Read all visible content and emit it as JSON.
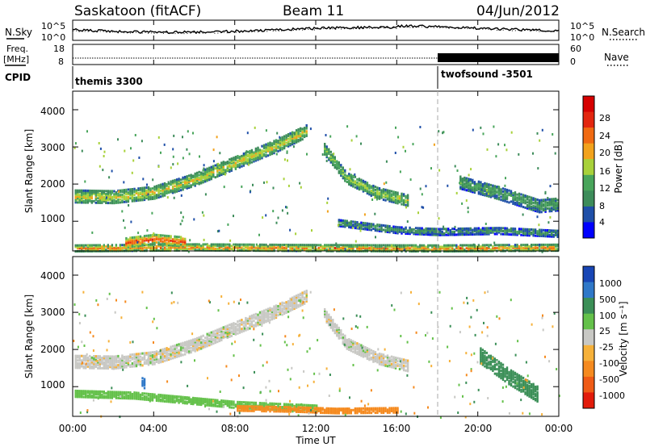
{
  "header": {
    "station": "Saskatoon (fitACF)",
    "beam": "Beam 11",
    "date": "04/Jun/2012"
  },
  "noise_panel": {
    "left_label": "N.Sky",
    "right_label": "N.Search",
    "y_ticks": [
      "10^5",
      "10^0"
    ],
    "right_ticks": [
      "10^5",
      "10^0"
    ]
  },
  "freq_panel": {
    "left_label_1": "Freq.",
    "left_label_2": "[MHz]",
    "right_label": "Nave",
    "y_ticks": [
      "18",
      "8"
    ],
    "right_ticks": [
      "60",
      "0"
    ]
  },
  "cpid": {
    "label": "CPID",
    "segments": [
      {
        "name": "themis 3300",
        "start_hour": 0
      },
      {
        "name": "twofsound -3501",
        "start_hour": 18
      }
    ]
  },
  "x_axis": {
    "label": "Time UT",
    "ticks": [
      "00:00",
      "04:00",
      "08:00",
      "12:00",
      "16:00",
      "20:00",
      "00:00"
    ],
    "range_hours": [
      0,
      24
    ]
  },
  "power_panel": {
    "ylabel": "Slant Range [km]",
    "y_ticks": [
      "1000",
      "2000",
      "3000",
      "4000"
    ],
    "colorbar_label": "Power [dB]",
    "colorbar_ticks": [
      "4",
      "8",
      "12",
      "16",
      "20",
      "24",
      "28"
    ],
    "colors": [
      "#0000ff",
      "#1f4fa8",
      "#3d8c5a",
      "#49a55b",
      "#a8d13a",
      "#f2a21c",
      "#f06a12",
      "#e3260f",
      "#d60000"
    ]
  },
  "velocity_panel": {
    "ylabel": "Slant Range [km]",
    "y_ticks": [
      "1000",
      "2000",
      "3000",
      "4000"
    ],
    "colorbar_label": "Velocity [m s⁻¹]",
    "colorbar_ticks": [
      "1000",
      "500",
      "100",
      "25",
      "-25",
      "-100",
      "-500",
      "-1000"
    ],
    "colors": [
      "#1846b5",
      "#2f78c8",
      "#3b8f57",
      "#64c14a",
      "#c8c8c4",
      "#f6b13a",
      "#f58a1f",
      "#ef5b16",
      "#e21b0b"
    ]
  },
  "chart_data": [
    {
      "type": "heatmap",
      "title": "",
      "xlabel": "",
      "ylabel": "Slant Range [km]",
      "xlim": [
        0,
        24
      ],
      "ylim": [
        200,
        4500
      ],
      "z_label": "Power [dB]",
      "z_range": [
        0,
        32
      ],
      "bands": [
        {
          "x": [
            0,
            2,
            4,
            6,
            8,
            10,
            11.5
          ],
          "y": [
            1700,
            1680,
            1800,
            2150,
            2600,
            3050,
            3450
          ],
          "width_km": 320,
          "level_db": 18
        },
        {
          "x": [
            12.3,
            13.5,
            15,
            16.5
          ],
          "y": [
            3050,
            2200,
            1800,
            1600
          ],
          "width_km": 300,
          "level_db": 16
        },
        {
          "x": [
            13,
            16,
            18,
            21,
            24
          ],
          "y": [
            1000,
            800,
            750,
            780,
            700
          ],
          "width_km": 180,
          "level_db": 10
        },
        {
          "x": [
            0,
            6,
            12,
            18,
            24
          ],
          "y": [
            300,
            330,
            310,
            300,
            320
          ],
          "width_km": 160,
          "level_db": 22
        },
        {
          "x": [
            2.5,
            4,
            5.5
          ],
          "y": [
            450,
            550,
            480
          ],
          "width_km": 250,
          "level_db": 26
        },
        {
          "x": [
            19,
            21,
            23,
            24
          ],
          "y": [
            2100,
            1800,
            1450,
            1500
          ],
          "width_km": 350,
          "level_db": 12
        }
      ]
    },
    {
      "type": "heatmap",
      "title": "",
      "xlabel": "Time UT",
      "ylabel": "Slant Range [km]",
      "xlim": [
        0,
        24
      ],
      "ylim": [
        200,
        4500
      ],
      "z_label": "Velocity [m s⁻¹]",
      "z_range": [
        -1000,
        1000
      ],
      "bands": [
        {
          "x": [
            0,
            2,
            4,
            6,
            8,
            10,
            11.5
          ],
          "y": [
            1700,
            1680,
            1800,
            2150,
            2600,
            3050,
            3450
          ],
          "width_km": 320,
          "velocity": 0
        },
        {
          "x": [
            12.3,
            13.5,
            15,
            16.5
          ],
          "y": [
            3050,
            2200,
            1800,
            1600
          ],
          "width_km": 300,
          "velocity": 0
        },
        {
          "x": [
            0,
            3,
            5,
            8,
            12
          ],
          "y": [
            850,
            800,
            700,
            550,
            450
          ],
          "width_km": 180,
          "velocity": 60
        },
        {
          "x": [
            3.3,
            3.6
          ],
          "y": [
            1250,
            1050
          ],
          "width_km": 250,
          "velocity": 800
        },
        {
          "x": [
            8,
            11,
            13,
            16
          ],
          "y": [
            450,
            420,
            380,
            400
          ],
          "width_km": 130,
          "velocity": -300
        },
        {
          "x": [
            20,
            21.5,
            23
          ],
          "y": [
            1900,
            1300,
            800
          ],
          "width_km": 400,
          "velocity": 300
        }
      ]
    }
  ]
}
